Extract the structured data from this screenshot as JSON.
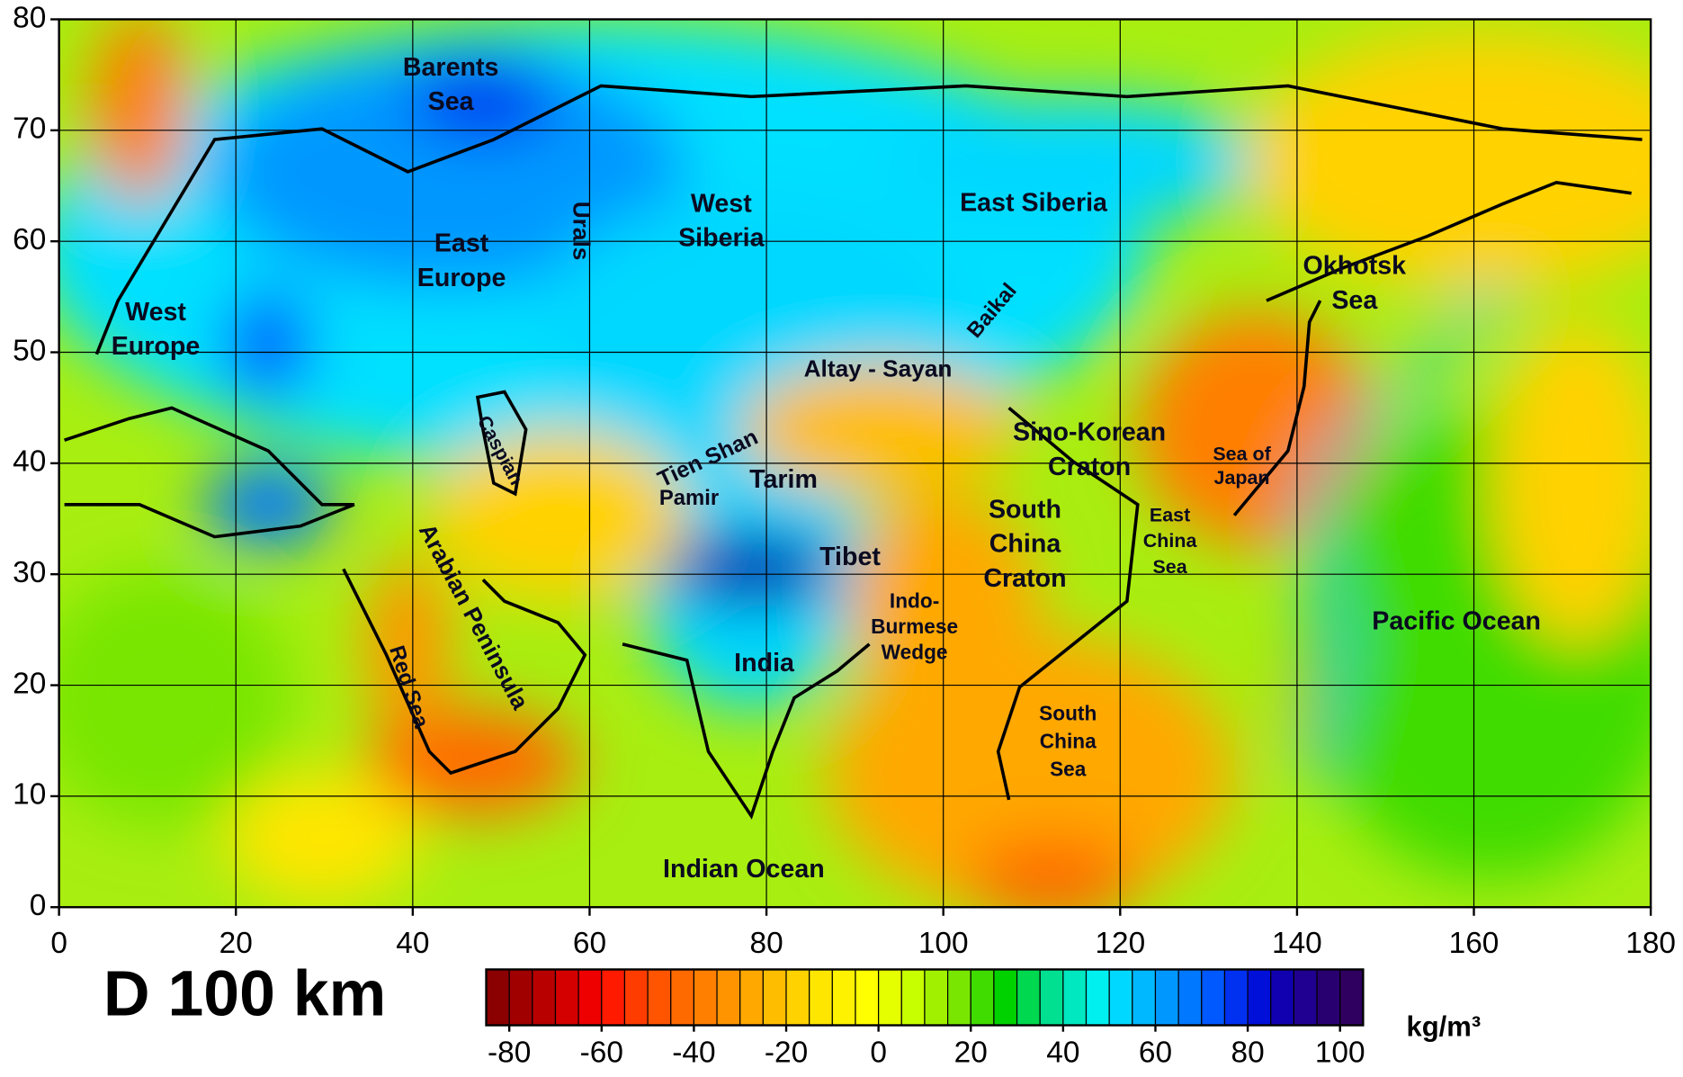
{
  "title": "D 100 km",
  "map": {
    "xlim": [
      0,
      180
    ],
    "ylim": [
      0,
      80
    ],
    "xticks": [
      0,
      20,
      40,
      60,
      80,
      100,
      120,
      140,
      160,
      180
    ],
    "yticks": [
      0,
      10,
      20,
      30,
      40,
      50,
      60,
      70,
      80
    ],
    "grid": true,
    "labels": [
      {
        "lines": [
          "Barents",
          "Sea"
        ]
      },
      {
        "lines": [
          "West",
          "Europe"
        ]
      },
      {
        "lines": [
          "East",
          "Europe"
        ]
      },
      {
        "lines": [
          "Urals"
        ]
      },
      {
        "lines": [
          "West",
          "Siberia"
        ]
      },
      {
        "lines": [
          "East Siberia"
        ]
      },
      {
        "lines": [
          "Baikal"
        ]
      },
      {
        "lines": [
          "Okhotsk",
          "Sea"
        ]
      },
      {
        "lines": [
          "Altay - Sayan"
        ]
      },
      {
        "lines": [
          "Caspian"
        ]
      },
      {
        "lines": [
          "Tien Shan"
        ]
      },
      {
        "lines": [
          "Pamir"
        ]
      },
      {
        "lines": [
          "Tarim"
        ]
      },
      {
        "lines": [
          "Tibet"
        ]
      },
      {
        "lines": [
          "Sino-Korean",
          "Craton"
        ]
      },
      {
        "lines": [
          "Sea of",
          "Japan"
        ]
      },
      {
        "lines": [
          "East",
          "China",
          "Sea"
        ]
      },
      {
        "lines": [
          "South",
          "China",
          "Craton"
        ]
      },
      {
        "lines": [
          "Pacific Ocean"
        ]
      },
      {
        "lines": [
          "Indo-",
          "Burmese",
          "Wedge"
        ]
      },
      {
        "lines": [
          "India"
        ]
      },
      {
        "lines": [
          "Arabian Peninsula"
        ]
      },
      {
        "lines": [
          "Red Sea"
        ]
      },
      {
        "lines": [
          "South",
          "China",
          "Sea"
        ]
      },
      {
        "lines": [
          "Indian Ocean"
        ]
      }
    ]
  },
  "colorbar": {
    "unit": "kg/m³",
    "lim": [
      -85,
      105
    ],
    "ticks": [
      -80,
      -60,
      -40,
      -20,
      0,
      20,
      40,
      60,
      80,
      100
    ],
    "colors": [
      "#8b0000",
      "#a00000",
      "#b80000",
      "#d40000",
      "#ee0000",
      "#ff1a00",
      "#ff3c00",
      "#ff5500",
      "#ff6a00",
      "#ff7f00",
      "#ff9400",
      "#ffa800",
      "#ffbd00",
      "#ffd200",
      "#ffe600",
      "#fff200",
      "#ffff00",
      "#e6ff00",
      "#c8ff00",
      "#a0f000",
      "#78e600",
      "#40dc00",
      "#00d200",
      "#00d850",
      "#00e090",
      "#00e8c0",
      "#00f0f0",
      "#00d8ff",
      "#00b8ff",
      "#0098ff",
      "#0078ff",
      "#0058ff",
      "#0030f0",
      "#0010d8",
      "#1000b0",
      "#200090",
      "#280070",
      "#300060"
    ]
  }
}
